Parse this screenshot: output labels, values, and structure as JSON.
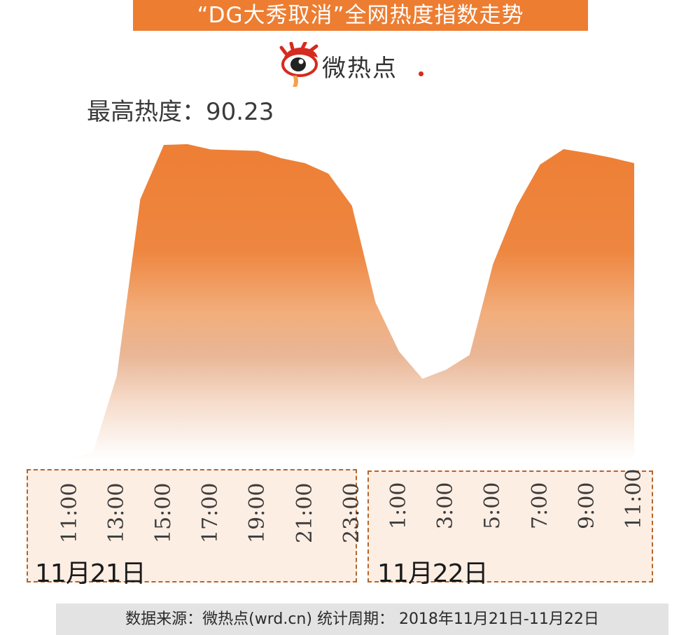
{
  "title": "“DG大秀取消”全网热度指数走势",
  "logo": {
    "text": "微热点",
    "icon": "weibo-eye-icon"
  },
  "peak_label": "最高热度：90.23",
  "footer": "数据来源：微热点(wrd.cn)  统计周期： 2018年11月21日-11月22日",
  "colors": {
    "accent": "#ED7D31",
    "fill_top": "#ED7D31",
    "fill_bottom": "#FFFFFF",
    "box_border": "#B4652A",
    "box_bg": "#FDEEE4",
    "footer_bg": "#E3E3E3"
  },
  "chart_data": {
    "type": "area",
    "ylim": [
      0,
      100
    ],
    "peak": 90.23,
    "x": [
      "11/21 10:00",
      "11/21 11:00",
      "11/21 12:00",
      "11/21 13:00",
      "11/21 14:00",
      "11/21 15:00",
      "11/21 16:00",
      "11/21 17:00",
      "11/21 18:00",
      "11/21 19:00",
      "11/21 20:00",
      "11/21 21:00",
      "11/21 22:00",
      "11/21 23:00",
      "11/22 0:00",
      "11/22 1:00",
      "11/22 2:00",
      "11/22 3:00",
      "11/22 4:00",
      "11/22 5:00",
      "11/22 6:00",
      "11/22 7:00",
      "11/22 8:00",
      "11/22 9:00",
      "11/22 10:00",
      "11/22 11:00"
    ],
    "values": [
      0,
      0.4,
      2.3,
      24,
      74.5,
      90,
      90.23,
      88.7,
      88.5,
      88.3,
      86.2,
      84.8,
      81.8,
      72.6,
      45,
      31,
      23.2,
      25.8,
      30,
      56,
      72.5,
      84.4,
      88.8,
      87.7,
      86.4,
      84.8
    ],
    "ticks": [
      {
        "group": "day1",
        "label": "11:00",
        "index": 1
      },
      {
        "group": "day1",
        "label": "13:00",
        "index": 3
      },
      {
        "group": "day1",
        "label": "15:00",
        "index": 5
      },
      {
        "group": "day1",
        "label": "17:00",
        "index": 7
      },
      {
        "group": "day1",
        "label": "19:00",
        "index": 9
      },
      {
        "group": "day1",
        "label": "21:00",
        "index": 11
      },
      {
        "group": "day1",
        "label": "23:00",
        "index": 13
      },
      {
        "group": "day2",
        "label": "1:00",
        "index": 15
      },
      {
        "group": "day2",
        "label": "3:00",
        "index": 17
      },
      {
        "group": "day2",
        "label": "5:00",
        "index": 19
      },
      {
        "group": "day2",
        "label": "7:00",
        "index": 21
      },
      {
        "group": "day2",
        "label": "9:00",
        "index": 23
      },
      {
        "group": "day2",
        "label": "11:00",
        "index": 25
      }
    ],
    "date_groups": [
      {
        "id": "day1",
        "label": "11月21日"
      },
      {
        "id": "day2",
        "label": "11月22日"
      }
    ]
  }
}
